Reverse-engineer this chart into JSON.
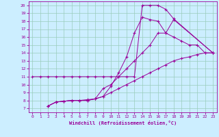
{
  "title": "",
  "xlabel": "Windchill (Refroidissement éolien,°C)",
  "bg_color": "#cceeff",
  "grid_color": "#99ccbb",
  "line_color": "#990099",
  "xlim": [
    -0.5,
    23.5
  ],
  "ylim": [
    6.5,
    20.5
  ],
  "xticks": [
    0,
    1,
    2,
    3,
    4,
    5,
    6,
    7,
    8,
    9,
    10,
    11,
    12,
    13,
    14,
    15,
    16,
    17,
    18,
    19,
    20,
    21,
    22,
    23
  ],
  "yticks": [
    7,
    8,
    9,
    10,
    11,
    12,
    13,
    14,
    15,
    16,
    17,
    18,
    19,
    20
  ],
  "line1_x": [
    0,
    1,
    2,
    3,
    4,
    5,
    6,
    7,
    8,
    9,
    10,
    11,
    12,
    13,
    14,
    15,
    16,
    17,
    18,
    23
  ],
  "line1_y": [
    11,
    11,
    11,
    11,
    11,
    11,
    11,
    11,
    11,
    11,
    11,
    11,
    11,
    11,
    20,
    20,
    20,
    19.5,
    18.3,
    14
  ],
  "line2_x": [
    2,
    3,
    4,
    5,
    6,
    7,
    8,
    9,
    10,
    11,
    12,
    13,
    14,
    15,
    16,
    17,
    18,
    23
  ],
  "line2_y": [
    7.3,
    7.8,
    7.9,
    8.0,
    8.0,
    8.0,
    8.2,
    8.5,
    9.8,
    11.5,
    13.5,
    16.5,
    18.5,
    18.2,
    18.0,
    16.5,
    18.2,
    14
  ],
  "line3_x": [
    2,
    3,
    4,
    5,
    6,
    7,
    8,
    9,
    10,
    11,
    12,
    13,
    14,
    15,
    16,
    17,
    18,
    19,
    20,
    21,
    22,
    23
  ],
  "line3_y": [
    7.3,
    7.8,
    7.9,
    8.0,
    8.0,
    8.1,
    8.2,
    9.5,
    10.0,
    11.0,
    12.0,
    13.0,
    14.0,
    15.0,
    16.5,
    16.5,
    16.0,
    15.5,
    15.0,
    15.0,
    14.0,
    14.0
  ],
  "line4_x": [
    2,
    3,
    4,
    5,
    6,
    7,
    8,
    9,
    10,
    11,
    12,
    13,
    14,
    15,
    16,
    17,
    18,
    19,
    20,
    21,
    22,
    23
  ],
  "line4_y": [
    7.3,
    7.8,
    7.9,
    8.0,
    8.0,
    8.0,
    8.2,
    8.5,
    9.0,
    9.5,
    10.0,
    10.5,
    11.0,
    11.5,
    12.0,
    12.5,
    13.0,
    13.3,
    13.5,
    13.8,
    14.0,
    14.0
  ]
}
